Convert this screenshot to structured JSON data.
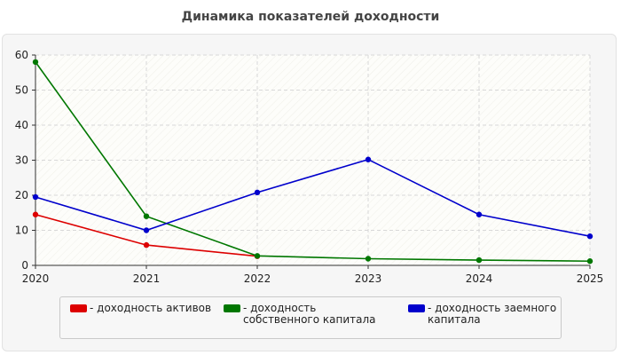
{
  "title": "Динамика показателей доходности",
  "chart_data": {
    "type": "line",
    "x": [
      2020,
      2021,
      2022,
      2023,
      2024,
      2025
    ],
    "xlim": [
      2020,
      2025
    ],
    "ylim": [
      0,
      60
    ],
    "yticks": [
      0,
      10,
      20,
      30,
      40,
      50,
      60
    ],
    "grid": true,
    "legend_position": "bottom",
    "series": [
      {
        "name": "- доходность активов",
        "color": "#dd0000",
        "x": [
          2020,
          2021,
          2022
        ],
        "values": [
          14.5,
          5.8,
          2.6
        ]
      },
      {
        "name": "- доходность собственного капитала",
        "color": "#007700",
        "x": [
          2020,
          2021,
          2022,
          2023,
          2024,
          2025
        ],
        "values": [
          58,
          14,
          2.7,
          1.9,
          1.5,
          1.2
        ]
      },
      {
        "name": "- доходность заемного капитала",
        "color": "#0000cc",
        "x": [
          2020,
          2021,
          2022,
          2023,
          2024,
          2025
        ],
        "values": [
          19.5,
          10,
          20.8,
          30.2,
          14.5,
          8.3
        ]
      }
    ]
  }
}
